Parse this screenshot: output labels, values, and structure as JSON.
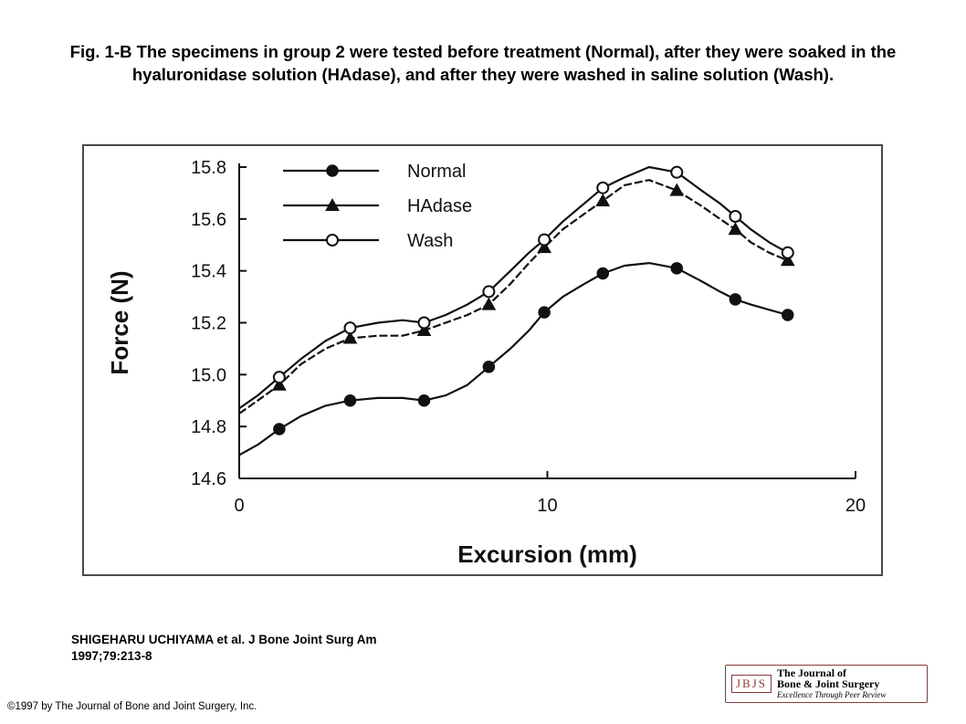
{
  "caption": "Fig. 1-B The specimens in group 2 were tested before treatment (Normal), after they were soaked in the hyaluronidase solution (HAdase), and after they were washed in saline solution (Wash).",
  "citation": {
    "line1": "SHIGEHARU UCHIYAMA et al. J Bone Joint Surg Am",
    "line2": "1997;79:213-8"
  },
  "copyright": "©1997 by The Journal of Bone and Joint Surgery, Inc.",
  "logo": {
    "mark": "JBJS",
    "line1": "The Journal of",
    "line2": "Bone & Joint Surgery",
    "line3": "Excellence Through Peer Review"
  },
  "chart_data": {
    "type": "line",
    "title": "",
    "xlabel": "Excursion (mm)",
    "ylabel": "Force (N)",
    "xlim": [
      0,
      20
    ],
    "ylim": [
      14.6,
      15.8
    ],
    "x_ticks": [
      "0",
      "10",
      "20"
    ],
    "y_ticks": [
      "14.6",
      "14.8",
      "15.0",
      "15.2",
      "15.4",
      "15.6",
      "15.8"
    ],
    "grid": false,
    "legend_position": "top-left",
    "series": [
      {
        "name": "Normal",
        "marker": "filled-circle",
        "markers": [
          [
            1.3,
            14.79
          ],
          [
            3.6,
            14.9
          ],
          [
            6,
            14.9
          ],
          [
            8.1,
            15.03
          ],
          [
            9.9,
            15.24
          ],
          [
            11.8,
            15.39
          ],
          [
            14.2,
            15.41
          ],
          [
            16.1,
            15.29
          ],
          [
            17.8,
            15.23
          ]
        ],
        "line": [
          [
            0,
            14.69
          ],
          [
            0.6,
            14.73
          ],
          [
            1.3,
            14.79
          ],
          [
            2,
            14.84
          ],
          [
            2.8,
            14.88
          ],
          [
            3.6,
            14.9
          ],
          [
            4.5,
            14.91
          ],
          [
            5.3,
            14.91
          ],
          [
            6,
            14.9
          ],
          [
            6.7,
            14.92
          ],
          [
            7.4,
            14.96
          ],
          [
            8.1,
            15.03
          ],
          [
            8.8,
            15.1
          ],
          [
            9.4,
            15.17
          ],
          [
            9.9,
            15.24
          ],
          [
            10.5,
            15.3
          ],
          [
            11.2,
            15.35
          ],
          [
            11.8,
            15.39
          ],
          [
            12.5,
            15.42
          ],
          [
            13.3,
            15.43
          ],
          [
            14.2,
            15.41
          ],
          [
            15,
            15.36
          ],
          [
            15.6,
            15.32
          ],
          [
            16.1,
            15.29
          ],
          [
            16.6,
            15.27
          ],
          [
            17.2,
            15.25
          ],
          [
            17.8,
            15.23
          ]
        ]
      },
      {
        "name": "HAdase",
        "marker": "filled-triangle",
        "markers": [
          [
            1.3,
            14.96
          ],
          [
            3.6,
            15.14
          ],
          [
            6,
            15.17
          ],
          [
            8.1,
            15.27
          ],
          [
            9.9,
            15.49
          ],
          [
            11.8,
            15.67
          ],
          [
            14.2,
            15.71
          ],
          [
            16.1,
            15.56
          ],
          [
            17.8,
            15.44
          ]
        ],
        "line": [
          [
            0,
            14.85
          ],
          [
            0.6,
            14.9
          ],
          [
            1.3,
            14.96
          ],
          [
            2,
            15.04
          ],
          [
            2.8,
            15.1
          ],
          [
            3.6,
            15.14
          ],
          [
            4.5,
            15.15
          ],
          [
            5.3,
            15.15
          ],
          [
            6,
            15.17
          ],
          [
            6.7,
            15.2
          ],
          [
            7.4,
            15.23
          ],
          [
            8.1,
            15.27
          ],
          [
            8.8,
            15.35
          ],
          [
            9.4,
            15.43
          ],
          [
            9.9,
            15.49
          ],
          [
            10.5,
            15.56
          ],
          [
            11.2,
            15.62
          ],
          [
            11.8,
            15.67
          ],
          [
            12.5,
            15.73
          ],
          [
            13.3,
            15.75
          ],
          [
            14.2,
            15.71
          ],
          [
            15,
            15.65
          ],
          [
            15.6,
            15.6
          ],
          [
            16.1,
            15.56
          ],
          [
            16.6,
            15.51
          ],
          [
            17.2,
            15.47
          ],
          [
            17.8,
            15.44
          ]
        ]
      },
      {
        "name": "Wash",
        "marker": "open-circle",
        "markers": [
          [
            1.3,
            14.99
          ],
          [
            3.6,
            15.18
          ],
          [
            6,
            15.2
          ],
          [
            8.1,
            15.32
          ],
          [
            9.9,
            15.52
          ],
          [
            11.8,
            15.72
          ],
          [
            14.2,
            15.78
          ],
          [
            16.1,
            15.61
          ],
          [
            17.8,
            15.47
          ]
        ],
        "line": [
          [
            0,
            14.87
          ],
          [
            0.6,
            14.92
          ],
          [
            1.3,
            14.99
          ],
          [
            2,
            15.06
          ],
          [
            2.8,
            15.13
          ],
          [
            3.6,
            15.18
          ],
          [
            4.5,
            15.2
          ],
          [
            5.3,
            15.21
          ],
          [
            6,
            15.2
          ],
          [
            6.7,
            15.23
          ],
          [
            7.4,
            15.27
          ],
          [
            8.1,
            15.32
          ],
          [
            8.8,
            15.4
          ],
          [
            9.4,
            15.47
          ],
          [
            9.9,
            15.52
          ],
          [
            10.5,
            15.59
          ],
          [
            11.2,
            15.66
          ],
          [
            11.8,
            15.72
          ],
          [
            12.5,
            15.76
          ],
          [
            13.3,
            15.8
          ],
          [
            14.2,
            15.78
          ],
          [
            15,
            15.71
          ],
          [
            15.6,
            15.66
          ],
          [
            16.1,
            15.61
          ],
          [
            16.6,
            15.56
          ],
          [
            17.2,
            15.51
          ],
          [
            17.8,
            15.47
          ]
        ]
      }
    ]
  }
}
